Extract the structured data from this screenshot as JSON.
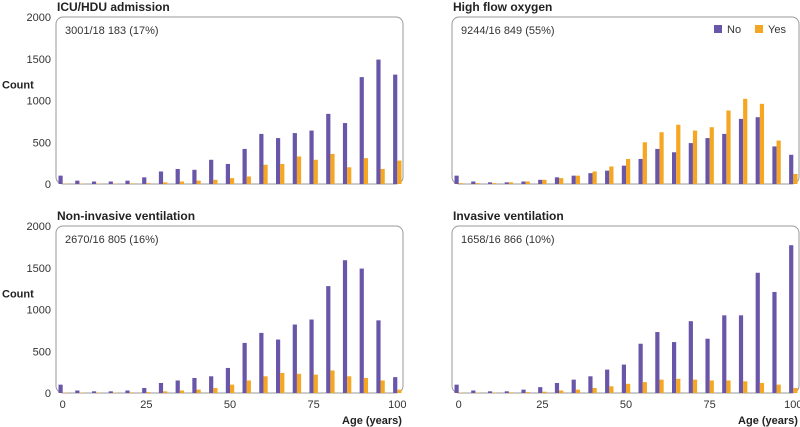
{
  "colors": {
    "no": "#6a56a8",
    "yes": "#f5a623"
  },
  "x_axis_label": "Age (years)",
  "legend": {
    "position": "top-right",
    "no_label": "No",
    "yes_label": "Yes"
  },
  "chart_data": [
    {
      "type": "bar",
      "title": "ICU/HDU admission",
      "annotation": "3001/18 183 (17%)",
      "ylabel": "Count",
      "xlabel": "",
      "xlim": [
        -2,
        102
      ],
      "ylim": [
        0,
        2000
      ],
      "xticks": [
        0,
        25,
        50,
        75,
        100
      ],
      "yticks": [
        0,
        500,
        1000,
        1500,
        2000
      ],
      "x": [
        0,
        5,
        10,
        15,
        20,
        25,
        30,
        35,
        40,
        45,
        50,
        55,
        60,
        65,
        70,
        75,
        80,
        85,
        90,
        95,
        100
      ],
      "series": [
        {
          "name": "No",
          "values": [
            100,
            40,
            30,
            30,
            40,
            80,
            150,
            180,
            170,
            290,
            240,
            420,
            600,
            550,
            610,
            640,
            840,
            730,
            1280,
            1490,
            1310
          ]
        },
        {
          "name": "Yes",
          "values": [
            5,
            5,
            5,
            5,
            8,
            10,
            20,
            30,
            40,
            50,
            70,
            90,
            230,
            240,
            330,
            290,
            360,
            200,
            310,
            180,
            280
          ]
        }
      ]
    },
    {
      "type": "bar",
      "title": "High flow oxygen",
      "annotation": "9244/16 849 (55%)",
      "ylabel": "",
      "xlabel": "",
      "xlim": [
        -2,
        102
      ],
      "ylim": [
        0,
        2000
      ],
      "xticks": [
        0,
        25,
        50,
        75,
        100
      ],
      "yticks": [
        0,
        500,
        1000,
        1500,
        2000
      ],
      "x": [
        0,
        5,
        10,
        15,
        20,
        25,
        30,
        35,
        40,
        45,
        50,
        55,
        60,
        65,
        70,
        75,
        80,
        85,
        90,
        95,
        100
      ],
      "series": [
        {
          "name": "No",
          "values": [
            100,
            30,
            20,
            20,
            30,
            50,
            80,
            100,
            130,
            160,
            220,
            300,
            420,
            380,
            490,
            550,
            600,
            780,
            800,
            450,
            350
          ]
        },
        {
          "name": "Yes",
          "values": [
            10,
            10,
            10,
            20,
            30,
            50,
            70,
            100,
            150,
            210,
            300,
            500,
            620,
            710,
            640,
            680,
            880,
            1020,
            960,
            520,
            120
          ]
        }
      ]
    },
    {
      "type": "bar",
      "title": "Non-invasive ventilation",
      "annotation": "2670/16 805 (16%)",
      "ylabel": "Count",
      "xlabel": "",
      "xlim": [
        -2,
        102
      ],
      "ylim": [
        0,
        2000
      ],
      "xticks": [
        0,
        25,
        50,
        75,
        100
      ],
      "yticks": [
        0,
        500,
        1000,
        1500,
        2000
      ],
      "x": [
        0,
        5,
        10,
        15,
        20,
        25,
        30,
        35,
        40,
        45,
        50,
        55,
        60,
        65,
        70,
        75,
        80,
        85,
        90,
        95,
        100
      ],
      "series": [
        {
          "name": "No",
          "values": [
            100,
            30,
            20,
            20,
            30,
            60,
            120,
            150,
            180,
            200,
            300,
            600,
            720,
            640,
            820,
            880,
            1280,
            1590,
            1490,
            870,
            190
          ]
        },
        {
          "name": "Yes",
          "values": [
            5,
            5,
            5,
            5,
            8,
            10,
            20,
            30,
            40,
            60,
            100,
            150,
            200,
            240,
            230,
            220,
            270,
            200,
            180,
            150,
            40
          ]
        }
      ]
    },
    {
      "type": "bar",
      "title": "Invasive ventilation",
      "annotation": "1658/16 866 (10%)",
      "ylabel": "",
      "xlabel": "Age (years)",
      "xlim": [
        -2,
        102
      ],
      "ylim": [
        0,
        2000
      ],
      "xticks": [
        0,
        25,
        50,
        75,
        100
      ],
      "yticks": [
        0,
        500,
        1000,
        1500,
        2000
      ],
      "x": [
        0,
        5,
        10,
        15,
        20,
        25,
        30,
        35,
        40,
        45,
        50,
        55,
        60,
        65,
        70,
        75,
        80,
        85,
        90,
        95,
        100
      ],
      "series": [
        {
          "name": "No",
          "values": [
            100,
            30,
            20,
            20,
            40,
            70,
            120,
            160,
            200,
            280,
            340,
            590,
            730,
            610,
            860,
            650,
            930,
            930,
            1440,
            1210,
            1770
          ]
        },
        {
          "name": "Yes",
          "values": [
            5,
            5,
            5,
            8,
            10,
            15,
            30,
            40,
            60,
            80,
            110,
            130,
            160,
            170,
            160,
            150,
            150,
            140,
            120,
            100,
            60
          ]
        }
      ]
    }
  ]
}
